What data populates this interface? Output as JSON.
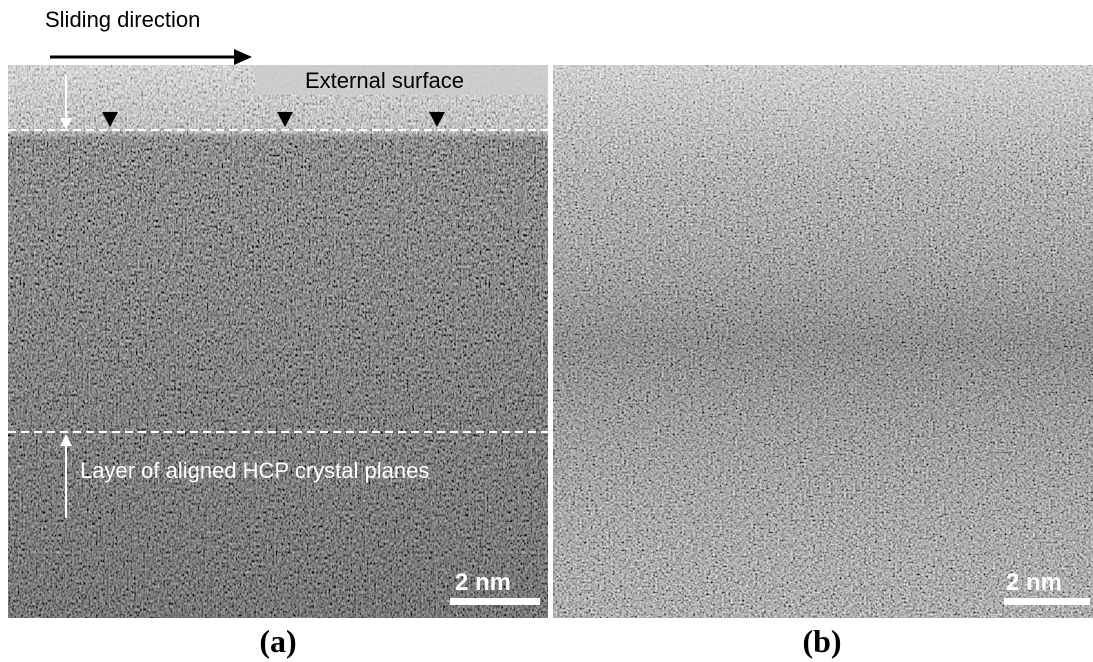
{
  "panels": [
    {
      "label": "(a)",
      "scale_bar": "2 nm",
      "annotations": [
        "Sliding direction",
        "External surface",
        "Layer of aligned HCP crystal planes"
      ]
    },
    {
      "label": "(b)",
      "scale_bar": "2 nm"
    }
  ]
}
